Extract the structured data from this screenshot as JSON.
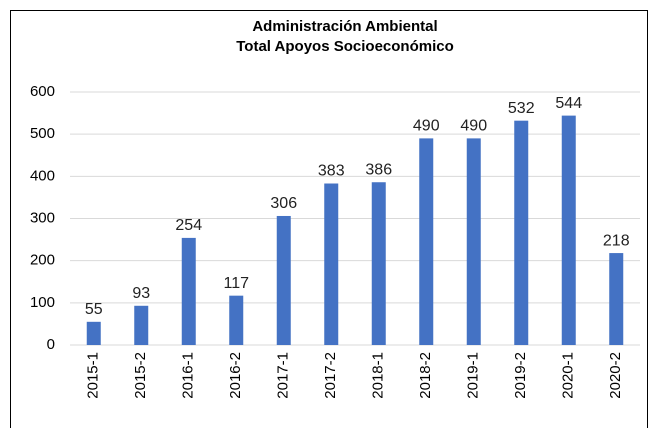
{
  "chart_data": {
    "type": "bar",
    "title": [
      "Administración Ambiental",
      "Total Apoyos Socioeconómico"
    ],
    "categories": [
      "2015-1",
      "2015-2",
      "2016-1",
      "2016-2",
      "2017-1",
      "2017-2",
      "2018-1",
      "2018-2",
      "2019-1",
      "2019-2",
      "2020-1",
      "2020-2"
    ],
    "values": [
      55,
      93,
      254,
      117,
      306,
      383,
      386,
      490,
      490,
      532,
      544,
      218
    ],
    "color": "#4472c4",
    "ylim": [
      0,
      600
    ],
    "yticks": [
      0,
      100,
      200,
      300,
      400,
      500,
      600
    ],
    "grid": true
  }
}
